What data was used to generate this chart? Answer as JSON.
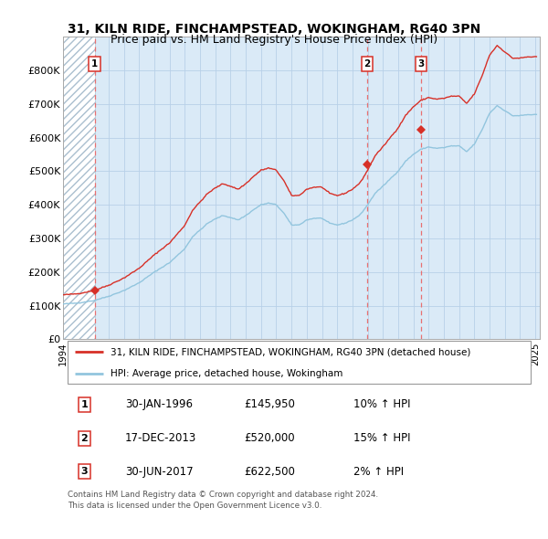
{
  "title": "31, KILN RIDE, FINCHAMPSTEAD, WOKINGHAM, RG40 3PN",
  "subtitle": "Price paid vs. HM Land Registry's House Price Index (HPI)",
  "title_fontsize": 10,
  "subtitle_fontsize": 9,
  "xlim": [
    1994.0,
    2025.3
  ],
  "ylim": [
    0,
    900000
  ],
  "yticks": [
    0,
    100000,
    200000,
    300000,
    400000,
    500000,
    600000,
    700000,
    800000
  ],
  "ytick_labels": [
    "£0",
    "£100K",
    "£200K",
    "£300K",
    "£400K",
    "£500K",
    "£600K",
    "£700K",
    "£800K"
  ],
  "xticks": [
    1994,
    1995,
    1996,
    1997,
    1998,
    1999,
    2000,
    2001,
    2002,
    2003,
    2004,
    2005,
    2006,
    2007,
    2008,
    2009,
    2010,
    2011,
    2012,
    2013,
    2014,
    2015,
    2016,
    2017,
    2018,
    2019,
    2020,
    2021,
    2022,
    2023,
    2024,
    2025
  ],
  "hpi_color": "#92c5de",
  "sale_color": "#d73027",
  "vline_color": "#e87070",
  "grid_color": "#b8d0e8",
  "bg_color": "#daeaf7",
  "hatch_color": "#aabfcf",
  "sales": [
    {
      "year": 1996.08,
      "price": 145950,
      "label": "1"
    },
    {
      "year": 2013.97,
      "price": 520000,
      "label": "2"
    },
    {
      "year": 2017.5,
      "price": 622500,
      "label": "3"
    }
  ],
  "table_rows": [
    {
      "num": "1",
      "date": "30-JAN-1996",
      "price": "£145,950",
      "change": "10% ↑ HPI"
    },
    {
      "num": "2",
      "date": "17-DEC-2013",
      "price": "£520,000",
      "change": "15% ↑ HPI"
    },
    {
      "num": "3",
      "date": "30-JUN-2017",
      "price": "£622,500",
      "change": "2% ↑ HPI"
    }
  ],
  "legend_entries": [
    "31, KILN RIDE, FINCHAMPSTEAD, WOKINGHAM, RG40 3PN (detached house)",
    "HPI: Average price, detached house, Wokingham"
  ],
  "footer": "Contains HM Land Registry data © Crown copyright and database right 2024.\nThis data is licensed under the Open Government Licence v3.0."
}
